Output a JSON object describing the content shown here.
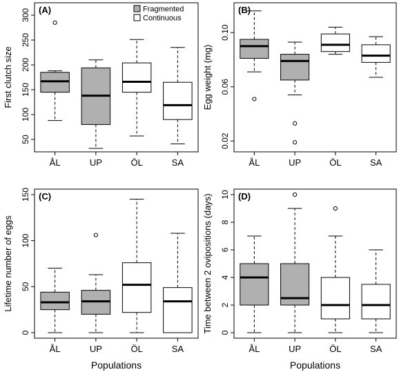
{
  "chart_data": [
    {
      "type": "boxplot",
      "panel_label": "(A)",
      "ylabel": "First clutch size",
      "xlabel": "",
      "categories": [
        "ÅL",
        "UP",
        "ÖL",
        "SA"
      ],
      "y_ticks": [
        50,
        100,
        150,
        200,
        250,
        300
      ],
      "ylim": [
        25,
        325
      ],
      "legend": {
        "position": "top-right",
        "entries": [
          {
            "label": "Fragmented",
            "color": "#b0b0b0"
          },
          {
            "label": "Continuous",
            "color": "#ffffff"
          }
        ]
      },
      "boxes": [
        {
          "category": "ÅL",
          "group": "Fragmented",
          "min": 88,
          "q1": 145,
          "median": 167,
          "q3": 185,
          "max": 188,
          "outliers": [
            285
          ]
        },
        {
          "category": "UP",
          "group": "Fragmented",
          "min": 32,
          "q1": 80,
          "median": 138,
          "q3": 194,
          "max": 210,
          "outliers": []
        },
        {
          "category": "ÖL",
          "group": "Continuous",
          "min": 57,
          "q1": 145,
          "median": 166,
          "q3": 204,
          "max": 251,
          "outliers": []
        },
        {
          "category": "SA",
          "group": "Continuous",
          "min": 41,
          "q1": 90,
          "median": 119,
          "q3": 165,
          "max": 235,
          "outliers": []
        }
      ]
    },
    {
      "type": "boxplot",
      "panel_label": "(B)",
      "ylabel": "Egg weight (mg)",
      "xlabel": "",
      "categories": [
        "ÅL",
        "UP",
        "ÖL",
        "SA"
      ],
      "y_ticks": [
        0.02,
        0.06,
        0.1
      ],
      "y_tick_labels": [
        "0.02",
        "0.06",
        "0.10"
      ],
      "ylim": [
        0.012,
        0.122
      ],
      "boxes": [
        {
          "category": "ÅL",
          "group": "Fragmented",
          "min": 0.071,
          "q1": 0.081,
          "median": 0.09,
          "q3": 0.095,
          "max": 0.116,
          "outliers": [
            0.051
          ]
        },
        {
          "category": "UP",
          "group": "Fragmented",
          "min": 0.054,
          "q1": 0.065,
          "median": 0.079,
          "q3": 0.084,
          "max": 0.093,
          "outliers": [
            0.033,
            0.019
          ]
        },
        {
          "category": "ÖL",
          "group": "Continuous",
          "min": 0.084,
          "q1": 0.086,
          "median": 0.091,
          "q3": 0.099,
          "max": 0.104,
          "outliers": []
        },
        {
          "category": "SA",
          "group": "Continuous",
          "min": 0.067,
          "q1": 0.078,
          "median": 0.083,
          "q3": 0.091,
          "max": 0.097,
          "outliers": []
        }
      ]
    },
    {
      "type": "boxplot",
      "panel_label": "(C)",
      "ylabel": "Lifetime number of eggs",
      "xlabel": "Populations",
      "categories": [
        "ÅL",
        "UP",
        "ÖL",
        "SA"
      ],
      "y_ticks": [
        0,
        50,
        100,
        150
      ],
      "ylim": [
        -6,
        156
      ],
      "boxes": [
        {
          "category": "ÅL",
          "group": "Fragmented",
          "min": 0,
          "q1": 25,
          "median": 33,
          "q3": 44,
          "max": 70,
          "outliers": []
        },
        {
          "category": "UP",
          "group": "Fragmented",
          "min": 0,
          "q1": 20,
          "median": 34,
          "q3": 46,
          "max": 63,
          "outliers": [
            106
          ]
        },
        {
          "category": "ÖL",
          "group": "Continuous",
          "min": 0,
          "q1": 22,
          "median": 52,
          "q3": 76,
          "max": 145,
          "outliers": []
        },
        {
          "category": "SA",
          "group": "Continuous",
          "min": 0,
          "q1": 0,
          "median": 34,
          "q3": 49,
          "max": 108,
          "outliers": []
        }
      ]
    },
    {
      "type": "boxplot",
      "panel_label": "(D)",
      "ylabel": "Time between 2 ovipositions (days)",
      "xlabel": "Populations",
      "categories": [
        "ÅL",
        "UP",
        "ÖL",
        "SA"
      ],
      "y_ticks": [
        0,
        2,
        4,
        6,
        8,
        10
      ],
      "ylim": [
        -0.4,
        10.4
      ],
      "boxes": [
        {
          "category": "ÅL",
          "group": "Fragmented",
          "min": 0,
          "q1": 2,
          "median": 4,
          "q3": 5,
          "max": 7,
          "outliers": []
        },
        {
          "category": "UP",
          "group": "Fragmented",
          "min": 0,
          "q1": 2,
          "median": 2.5,
          "q3": 5,
          "max": 9,
          "outliers": [
            10
          ]
        },
        {
          "category": "ÖL",
          "group": "Continuous",
          "min": 0,
          "q1": 1,
          "median": 2,
          "q3": 4,
          "max": 7,
          "outliers": [
            9
          ]
        },
        {
          "category": "SA",
          "group": "Continuous",
          "min": 0,
          "q1": 1,
          "median": 2,
          "q3": 3.5,
          "max": 6,
          "outliers": []
        }
      ]
    }
  ]
}
